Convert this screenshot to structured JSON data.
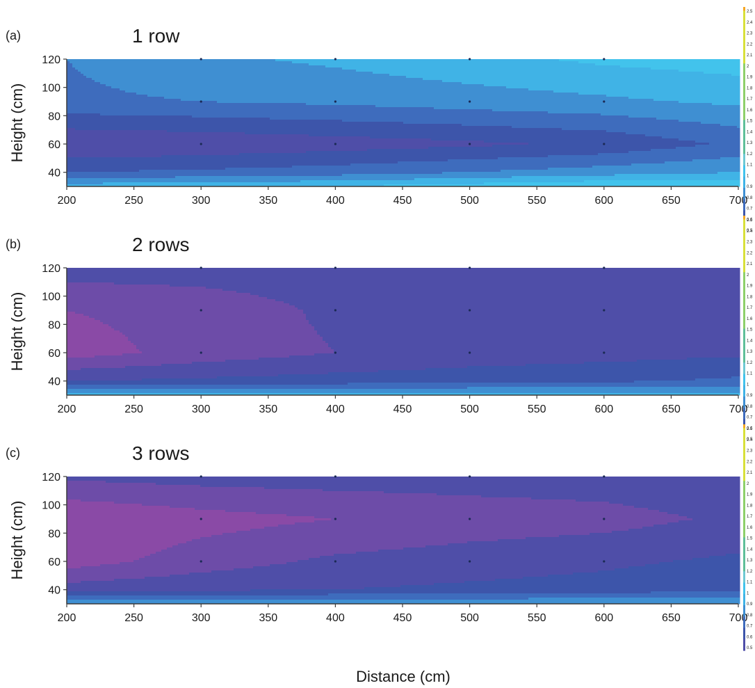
{
  "chart_data": [
    {
      "type": "heatmap",
      "panel_label": "(a)",
      "title": "1 row",
      "xlabel": "",
      "ylabel": "Height (cm)",
      "xlim": [
        200,
        700
      ],
      "ylim": [
        30,
        120
      ],
      "xticks": [
        200,
        250,
        300,
        350,
        400,
        450,
        500,
        550,
        600,
        650,
        700
      ],
      "yticks": [
        40,
        60,
        80,
        100,
        120
      ],
      "x_grid": [
        200,
        300,
        400,
        500,
        600,
        700
      ],
      "y_grid": [
        30,
        40,
        60,
        90,
        120
      ],
      "z": [
        [
          0.95,
          0.97,
          1.0,
          1.05,
          1.1,
          1.08
        ],
        [
          0.7,
          0.72,
          0.75,
          0.8,
          0.85,
          0.9
        ],
        [
          0.5,
          0.52,
          0.55,
          0.58,
          0.62,
          0.72
        ],
        [
          0.78,
          0.8,
          0.82,
          0.85,
          0.88,
          0.92
        ],
        [
          0.8,
          0.88,
          0.92,
          0.97,
          1.02,
          1.05
        ]
      ]
    },
    {
      "type": "heatmap",
      "panel_label": "(b)",
      "title": "2 rows",
      "xlabel": "",
      "ylabel": "Height (cm)",
      "xlim": [
        200,
        700
      ],
      "ylim": [
        30,
        120
      ],
      "xticks": [
        200,
        250,
        300,
        350,
        400,
        450,
        500,
        550,
        600,
        650,
        700
      ],
      "yticks": [
        40,
        60,
        80,
        100,
        120
      ],
      "x_grid": [
        200,
        300,
        400,
        500,
        600,
        700
      ],
      "y_grid": [
        30,
        40,
        60,
        90,
        120
      ],
      "z": [
        [
          0.95,
          0.95,
          0.95,
          0.95,
          0.95,
          0.95
        ],
        [
          0.6,
          0.62,
          0.64,
          0.66,
          0.68,
          0.72
        ],
        [
          0.35,
          0.44,
          0.5,
          0.54,
          0.56,
          0.58
        ],
        [
          0.4,
          0.44,
          0.52,
          0.55,
          0.57,
          0.58
        ],
        [
          0.55,
          0.55,
          0.55,
          0.55,
          0.55,
          0.55
        ]
      ]
    },
    {
      "type": "heatmap",
      "panel_label": "(c)",
      "title": "3 rows",
      "xlabel": "Distance (cm)",
      "ylabel": "Height (cm)",
      "xlim": [
        200,
        700
      ],
      "ylim": [
        30,
        120
      ],
      "xticks": [
        200,
        250,
        300,
        350,
        400,
        450,
        500,
        550,
        600,
        650,
        700
      ],
      "yticks": [
        40,
        60,
        80,
        100,
        120
      ],
      "x_grid": [
        200,
        300,
        400,
        500,
        600,
        700
      ],
      "y_grid": [
        30,
        40,
        60,
        90,
        120
      ],
      "z": [
        [
          0.9,
          0.9,
          0.9,
          0.9,
          0.9,
          0.9
        ],
        [
          0.55,
          0.58,
          0.6,
          0.62,
          0.64,
          0.68
        ],
        [
          0.35,
          0.45,
          0.52,
          0.55,
          0.58,
          0.62
        ],
        [
          0.3,
          0.36,
          0.4,
          0.44,
          0.46,
          0.52
        ],
        [
          0.52,
          0.54,
          0.55,
          0.55,
          0.56,
          0.58
        ]
      ]
    }
  ],
  "colorbar": {
    "labels": [
      "2.5",
      "2.4",
      "2.3",
      "2.2",
      "2.1",
      "2",
      "1.9",
      "1.8",
      "1.7",
      "1.6",
      "1.5",
      "1.4",
      "1.3",
      "1.2",
      "1.1",
      "1",
      "0.9",
      "0.8",
      "0.7",
      "0.6",
      "0.5"
    ],
    "levels": [
      {
        "value": 0.3,
        "color": "#8a4aa6"
      },
      {
        "value": 0.4,
        "color": "#6d4ca8"
      },
      {
        "value": 0.5,
        "color": "#4f4ea8"
      },
      {
        "value": 0.6,
        "color": "#3d55aa"
      },
      {
        "value": 0.7,
        "color": "#3e6cbd"
      },
      {
        "value": 0.8,
        "color": "#3f8fd2"
      },
      {
        "value": 0.9,
        "color": "#40b3e6"
      },
      {
        "value": 1.0,
        "color": "#42c3ec"
      },
      {
        "value": 1.1,
        "color": "#6ec9d4"
      },
      {
        "value": 1.2,
        "color": "#5fbf9a"
      },
      {
        "value": 1.5,
        "color": "#8ed06a"
      },
      {
        "value": 2.0,
        "color": "#d8e03a"
      },
      {
        "value": 2.5,
        "color": "#f5a623"
      }
    ]
  },
  "style": {
    "axis_color": "#3a3a3a",
    "text_color": "#1a1a1a"
  }
}
